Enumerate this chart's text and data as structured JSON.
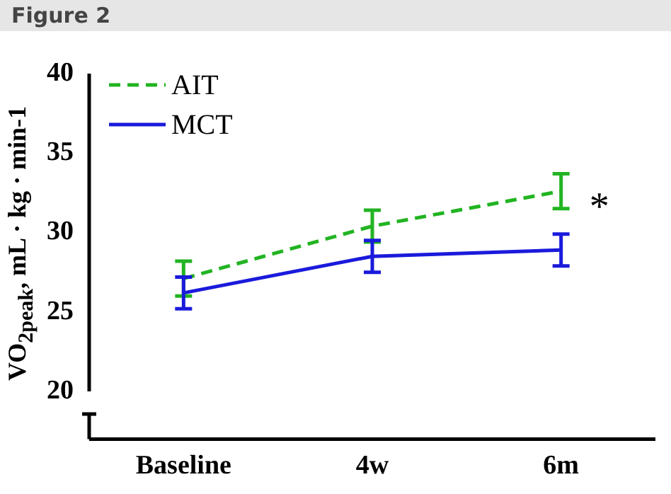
{
  "chart_data": {
    "type": "line",
    "title": "Figure 2",
    "ylabel": "VO$_{2peak}$, mL · kg · min-1",
    "categories": [
      "Baseline",
      "4w",
      "6m"
    ],
    "series": [
      {
        "name": "AIT",
        "color": "#22b422",
        "line_style": "dashed",
        "values": [
          27.1,
          30.4,
          32.6
        ],
        "errors": [
          1.1,
          1.0,
          1.1
        ]
      },
      {
        "name": "MCT",
        "color": "#1a1adc",
        "line_style": "solid",
        "values": [
          26.2,
          28.5,
          28.9
        ],
        "errors": [
          1.0,
          1.0,
          1.0
        ]
      }
    ],
    "ylim": [
      17,
      40
    ],
    "yticks": [
      20,
      25,
      30,
      35,
      40
    ],
    "grid": false,
    "legend": "top left",
    "marker": "none",
    "annotations": [
      {
        "text": "*",
        "x": "6m",
        "y": 32
      }
    ]
  }
}
